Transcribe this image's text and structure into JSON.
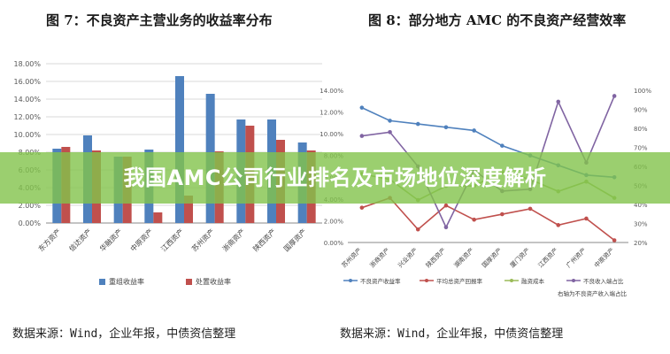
{
  "left_title": "图 7：不良资产主营业务的收益率分布",
  "right_title": "图 8：部分地方 AMC 的不良资产经营效率",
  "source_left": "数据来源：Wind，企业年报，中债资信整理",
  "source_right": "数据来源：Wind，企业年报，中债资信整理",
  "banner": {
    "text": "我国AMC公司行业排名及市场地位深度解析"
  },
  "colors": {
    "blue": "#4f81bd",
    "red": "#c0504d",
    "green": "#9bbb59",
    "purple": "#8064a2",
    "banner": "#82c34b"
  },
  "chart_data": [
    {
      "type": "bar",
      "title": "图 7：不良资产主营业务的收益率分布",
      "categories": [
        "东方资产",
        "信达资产",
        "华融资产",
        "中原资产",
        "江西资产",
        "苏州资产",
        "浙商资产",
        "陕西资产",
        "国厚资产"
      ],
      "series": [
        {
          "name": "重组收益率",
          "color": "#4f81bd",
          "values": [
            8.4,
            9.9,
            7.5,
            8.3,
            16.6,
            14.6,
            11.7,
            11.7,
            9.1
          ]
        },
        {
          "name": "处置收益率",
          "color": "#c0504d",
          "values": [
            8.6,
            8.2,
            7.5,
            1.2,
            3.1,
            8.1,
            11.0,
            9.4,
            8.2
          ]
        }
      ],
      "y_ticks": [
        "0.00%",
        "2.00%",
        "4.00%",
        "6.00%",
        "8.00%",
        "10.00%",
        "12.00%",
        "14.00%",
        "16.00%",
        "18.00%"
      ],
      "ylim": [
        0,
        18
      ],
      "legend": "bottom",
      "grid": true
    },
    {
      "type": "line",
      "title": "图 8：部分地方 AMC 的不良资产经营效率",
      "categories": [
        "苏州资产",
        "浙商资产",
        "兴业资产",
        "陕西资产",
        "湖南资产",
        "国厚资产",
        "厦门资产",
        "江西资产",
        "广州资产",
        "中原资产"
      ],
      "series": [
        {
          "name": "不良资产收益率",
          "axis": "left",
          "color": "#4f81bd",
          "values": [
            12.4,
            11.2,
            10.9,
            10.6,
            10.3,
            8.9,
            8.0,
            7.1,
            6.2,
            6.0
          ]
        },
        {
          "name": "平均总资产回报率",
          "axis": "left",
          "color": "#c0504d",
          "values": [
            3.2,
            4.1,
            1.2,
            3.4,
            2.1,
            2.6,
            3.1,
            1.6,
            2.2,
            0.2
          ]
        },
        {
          "name": "融资成本",
          "axis": "left",
          "color": "#9bbb59",
          "values": [
            6.3,
            5.8,
            3.9,
            5.2,
            5.2,
            6.5,
            5.8,
            4.7,
            5.6,
            4.1
          ]
        },
        {
          "name": "不良收入端占比",
          "axis": "right",
          "color": "#8064a2",
          "values": [
            76,
            78,
            60,
            28,
            58,
            47,
            48,
            94,
            62,
            97
          ]
        }
      ],
      "y_left_ticks": [
        "0.00%",
        "2.00%",
        "4.00%",
        "6.00%",
        "8.00%",
        "10.00%",
        "12.00%",
        "14.00%"
      ],
      "y_right_ticks": [
        "20%",
        "30%",
        "40%",
        "50%",
        "60%",
        "70%",
        "80%",
        "90%",
        "100%"
      ],
      "ylim_left": [
        0,
        14
      ],
      "ylim_right": [
        20,
        100
      ],
      "right_axis_note": "右轴为不良资产收入端占比",
      "legend": "bottom",
      "grid": false
    }
  ]
}
